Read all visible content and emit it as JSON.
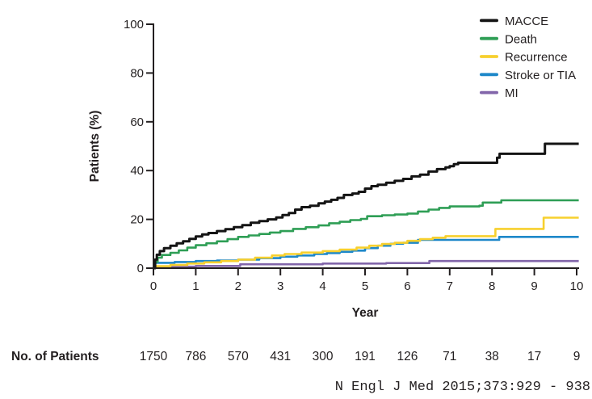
{
  "chart_data": {
    "type": "line",
    "subtype": "kaplan-meier-step",
    "title": "",
    "xlabel": "Year",
    "ylabel": "Patients (%)",
    "xlim": [
      0,
      10
    ],
    "ylim": [
      0,
      100
    ],
    "grid": false,
    "legend_position": "top-right",
    "x_tick_labels": [
      "0",
      "1",
      "2",
      "3",
      "4",
      "5",
      "6",
      "7",
      "8",
      "9",
      "10"
    ],
    "y_tick_labels": [
      "0",
      "20",
      "40",
      "60",
      "80",
      "100"
    ],
    "axis_color": "#231f20",
    "series": [
      {
        "name": "MACCE",
        "color": "#141414",
        "points": [
          [
            0,
            0
          ],
          [
            0.04,
            3.5
          ],
          [
            0.08,
            5.5
          ],
          [
            0.15,
            7
          ],
          [
            0.25,
            8.2
          ],
          [
            0.4,
            9.2
          ],
          [
            0.55,
            10.2
          ],
          [
            0.7,
            11
          ],
          [
            0.85,
            12
          ],
          [
            1.0,
            13
          ],
          [
            1.15,
            13.8
          ],
          [
            1.3,
            14.4
          ],
          [
            1.5,
            15.2
          ],
          [
            1.7,
            16
          ],
          [
            1.9,
            16.8
          ],
          [
            2.1,
            17.6
          ],
          [
            2.3,
            18.6
          ],
          [
            2.5,
            19.3
          ],
          [
            2.7,
            20
          ],
          [
            2.9,
            20.8
          ],
          [
            3.05,
            21.8
          ],
          [
            3.2,
            22.6
          ],
          [
            3.35,
            24
          ],
          [
            3.5,
            25
          ],
          [
            3.7,
            25.6
          ],
          [
            3.9,
            26.6
          ],
          [
            4.05,
            27.3
          ],
          [
            4.2,
            28
          ],
          [
            4.35,
            28.8
          ],
          [
            4.5,
            30
          ],
          [
            4.7,
            30.6
          ],
          [
            4.85,
            31.3
          ],
          [
            5.0,
            32.6
          ],
          [
            5.15,
            33.6
          ],
          [
            5.3,
            34.2
          ],
          [
            5.5,
            35
          ],
          [
            5.7,
            35.8
          ],
          [
            5.9,
            36.6
          ],
          [
            6.1,
            37.6
          ],
          [
            6.3,
            38.3
          ],
          [
            6.5,
            39.6
          ],
          [
            6.7,
            40.6
          ],
          [
            6.9,
            41.3
          ],
          [
            7.0,
            41.8
          ],
          [
            7.1,
            42.6
          ],
          [
            7.2,
            43.2
          ],
          [
            8.05,
            43.2
          ],
          [
            8.12,
            45.3
          ],
          [
            8.18,
            46.9
          ],
          [
            9.18,
            46.9
          ],
          [
            9.25,
            51
          ],
          [
            10.05,
            51
          ]
        ]
      },
      {
        "name": "Death",
        "color": "#2e9e55",
        "points": [
          [
            0,
            0
          ],
          [
            0.04,
            2.5
          ],
          [
            0.1,
            4.3
          ],
          [
            0.2,
            5.4
          ],
          [
            0.4,
            6.3
          ],
          [
            0.6,
            7.3
          ],
          [
            0.8,
            8.4
          ],
          [
            1.0,
            9.4
          ],
          [
            1.25,
            10.2
          ],
          [
            1.5,
            11
          ],
          [
            1.75,
            11.9
          ],
          [
            2.0,
            12.8
          ],
          [
            2.25,
            13.4
          ],
          [
            2.5,
            14
          ],
          [
            2.75,
            14.6
          ],
          [
            3.0,
            15.2
          ],
          [
            3.3,
            16.1
          ],
          [
            3.6,
            16.8
          ],
          [
            3.9,
            17.5
          ],
          [
            4.15,
            18.4
          ],
          [
            4.4,
            19
          ],
          [
            4.65,
            19.7
          ],
          [
            4.9,
            20.2
          ],
          [
            5.05,
            21.3
          ],
          [
            5.4,
            21.7
          ],
          [
            5.7,
            22
          ],
          [
            6.0,
            22.4
          ],
          [
            6.25,
            23.2
          ],
          [
            6.5,
            24
          ],
          [
            6.75,
            24.7
          ],
          [
            7.0,
            25.3
          ],
          [
            7.7,
            25.6
          ],
          [
            7.78,
            26.9
          ],
          [
            8.15,
            26.9
          ],
          [
            8.22,
            27.8
          ],
          [
            10.05,
            27.8
          ]
        ]
      },
      {
        "name": "Recurrence",
        "color": "#f7d02e",
        "points": [
          [
            0,
            0
          ],
          [
            0.05,
            0.8
          ],
          [
            0.4,
            1.3
          ],
          [
            0.8,
            1.9
          ],
          [
            1.2,
            2.4
          ],
          [
            1.6,
            2.9
          ],
          [
            2.0,
            3.5
          ],
          [
            2.4,
            4.3
          ],
          [
            2.8,
            5.2
          ],
          [
            3.1,
            5.8
          ],
          [
            3.5,
            6.4
          ],
          [
            4.0,
            7.0
          ],
          [
            4.4,
            7.6
          ],
          [
            4.8,
            8.4
          ],
          [
            5.1,
            9.2
          ],
          [
            5.4,
            9.9
          ],
          [
            5.7,
            10.4
          ],
          [
            6.0,
            11.2
          ],
          [
            6.3,
            11.9
          ],
          [
            6.6,
            12.5
          ],
          [
            6.9,
            13.1
          ],
          [
            8.0,
            13.1
          ],
          [
            8.08,
            16.1
          ],
          [
            9.15,
            16.1
          ],
          [
            9.22,
            20.7
          ],
          [
            10.05,
            20.7
          ]
        ]
      },
      {
        "name": "Stroke or TIA",
        "color": "#1e88c9",
        "points": [
          [
            0,
            0
          ],
          [
            0.03,
            2.2
          ],
          [
            0.5,
            2.5
          ],
          [
            1.0,
            2.9
          ],
          [
            1.5,
            3.1
          ],
          [
            2.0,
            3.5
          ],
          [
            2.5,
            4.1
          ],
          [
            3.0,
            4.7
          ],
          [
            3.4,
            5.2
          ],
          [
            3.8,
            5.8
          ],
          [
            4.1,
            6.2
          ],
          [
            4.4,
            6.7
          ],
          [
            4.7,
            7.2
          ],
          [
            5.0,
            8.2
          ],
          [
            5.3,
            9.2
          ],
          [
            5.6,
            10
          ],
          [
            5.9,
            10.4
          ],
          [
            6.25,
            11.6
          ],
          [
            8.1,
            11.6
          ],
          [
            8.17,
            12.8
          ],
          [
            10.05,
            12.8
          ]
        ]
      },
      {
        "name": "MI",
        "color": "#8266aa",
        "points": [
          [
            0,
            0
          ],
          [
            0.04,
            0.6
          ],
          [
            1.0,
            0.9
          ],
          [
            2.05,
            1.6
          ],
          [
            4.0,
            1.9
          ],
          [
            5.5,
            2.1
          ],
          [
            6.45,
            2.1
          ],
          [
            6.52,
            2.9
          ],
          [
            10.05,
            2.9
          ]
        ]
      }
    ],
    "at_risk": {
      "label": "No. of Patients",
      "values": [
        "1750",
        "786",
        "570",
        "431",
        "300",
        "191",
        "126",
        "71",
        "38",
        "17",
        "9"
      ]
    }
  },
  "citation": "N Engl J Med 2015;373:929 - 938"
}
